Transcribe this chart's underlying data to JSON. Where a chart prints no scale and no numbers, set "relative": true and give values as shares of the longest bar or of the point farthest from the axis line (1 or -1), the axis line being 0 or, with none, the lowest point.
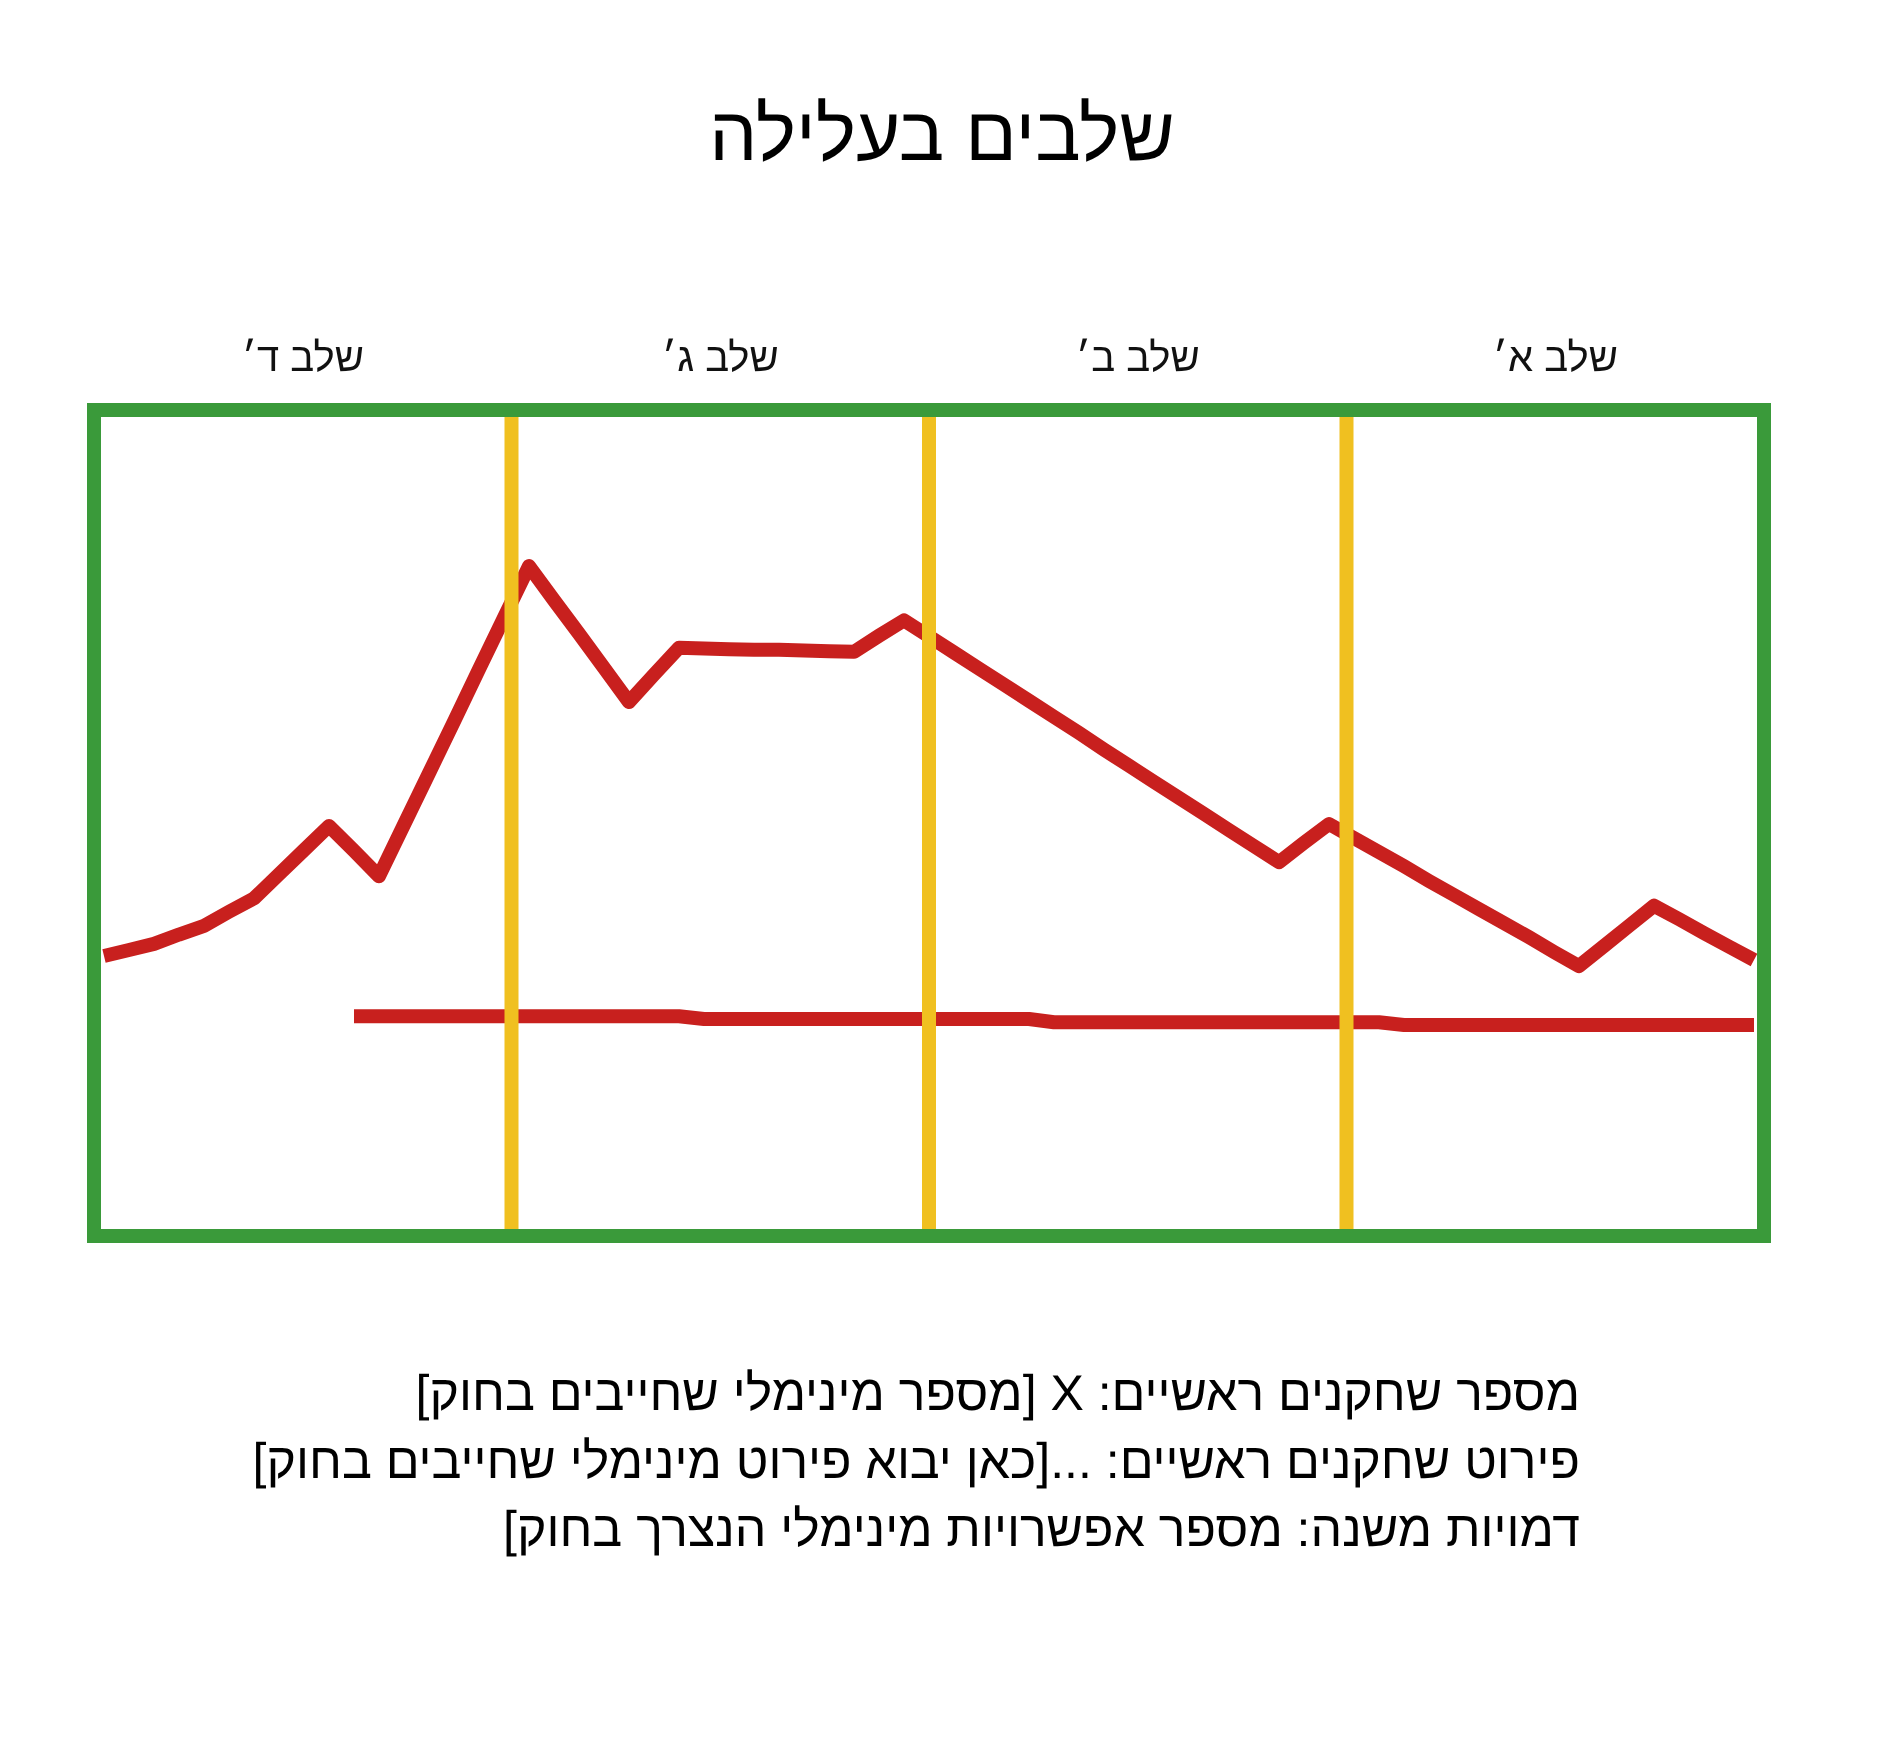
{
  "chart_data": {
    "type": "line",
    "title": "שלבים בעלילה",
    "relative": true,
    "legend": false,
    "marker": "none",
    "line_style": "solid",
    "categories": [
      null,
      null,
      null,
      null,
      null,
      null,
      null,
      null,
      null,
      null,
      null,
      null,
      null,
      null,
      null,
      null,
      null,
      null,
      null,
      null,
      null,
      null,
      null,
      null,
      null,
      null,
      null,
      null,
      null,
      null,
      null,
      null,
      null,
      null,
      null,
      null,
      null,
      null,
      null,
      null,
      null,
      null,
      null,
      null,
      null,
      null,
      null,
      null,
      null,
      null,
      null,
      null,
      null,
      null,
      null,
      null,
      null,
      null,
      null,
      null,
      null,
      null,
      null,
      null,
      null,
      null,
      null
    ],
    "series": [
      {
        "color": "#c8201e",
        "values": [
          0.418,
          0.427,
          0.436,
          0.45,
          0.463,
          0.484,
          0.504,
          0.54,
          0.576,
          0.612,
          0.575,
          0.537,
          0.614,
          0.691,
          0.768,
          0.846,
          0.923,
          1.0,
          0.949,
          0.899,
          0.848,
          0.797,
          0.838,
          0.878,
          0.877,
          0.876,
          0.875,
          0.875,
          0.874,
          0.873,
          0.872,
          0.896,
          0.919,
          0.895,
          0.871,
          0.847,
          0.823,
          0.799,
          0.775,
          0.751,
          0.726,
          0.702,
          0.678,
          0.654,
          0.63,
          0.606,
          0.582,
          0.558,
          0.587,
          0.615,
          0.594,
          0.573,
          0.552,
          0.53,
          0.509,
          0.488,
          0.467,
          0.446,
          0.424,
          0.403,
          0.433,
          0.463,
          0.493,
          0.473,
          0.452,
          0.432,
          0.412
        ]
      },
      {
        "color": "#c8201e",
        "values": [
          null,
          null,
          null,
          null,
          null,
          null,
          null,
          null,
          null,
          null,
          0.328,
          0.328,
          0.328,
          0.328,
          0.328,
          0.328,
          0.328,
          0.328,
          0.328,
          0.328,
          0.328,
          0.328,
          0.328,
          0.328,
          0.324,
          0.324,
          0.324,
          0.324,
          0.324,
          0.324,
          0.324,
          0.324,
          0.324,
          0.324,
          0.324,
          0.324,
          0.324,
          0.324,
          0.319,
          0.319,
          0.319,
          0.319,
          0.319,
          0.319,
          0.319,
          0.319,
          0.319,
          0.319,
          0.319,
          0.319,
          0.319,
          0.319,
          0.315,
          0.315,
          0.315,
          0.315,
          0.315,
          0.315,
          0.315,
          0.315,
          0.315,
          0.315,
          0.315,
          0.315,
          0.315,
          0.315,
          0.315
        ]
      }
    ],
    "annotations": [
      "שלב א׳",
      "שלב ב׳",
      "שלב ג׳",
      "שלב ד׳",
      "מספר שחקנים ראשיים: X [מספר מינימלי שחייבים בחוק]",
      "פירוט שחקנים ראשיים: ...[כאן יבוא פירוט מינימלי שחייבים בחוק]",
      "דמויות משנה: מספר אפשרויות מינימלי הנצרך בחוק]"
    ]
  }
}
